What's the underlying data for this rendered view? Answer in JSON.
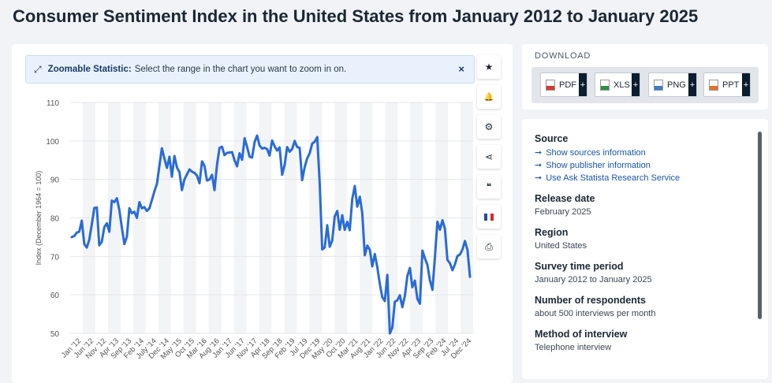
{
  "page": {
    "title": "Consumer Sentiment Index in the United States from January 2012 to January 2025"
  },
  "zoom": {
    "label": "Zoomable Statistic:",
    "text": "Select the range in the chart you want to zoom in on.",
    "close": "×"
  },
  "tools": [
    {
      "name": "star-icon",
      "glyph": "★"
    },
    {
      "name": "bell-icon",
      "glyph": "🔔"
    },
    {
      "name": "gear-icon",
      "glyph": "⚙"
    },
    {
      "name": "share-icon",
      "glyph": "⋖"
    },
    {
      "name": "quote-icon",
      "glyph": "❝"
    },
    {
      "name": "flag-icon",
      "glyph": ""
    },
    {
      "name": "print-icon",
      "glyph": "⎙"
    }
  ],
  "download": {
    "title": "DOWNLOAD",
    "buttons": [
      {
        "label": "PDF",
        "color": "#d43a2f"
      },
      {
        "label": "XLS",
        "color": "#2f8f46"
      },
      {
        "label": "PNG",
        "color": "#3b7fc4"
      },
      {
        "label": "PPT",
        "color": "#e0762a"
      }
    ],
    "plus": "+"
  },
  "info": {
    "source_head": "Source",
    "links": [
      "Show sources information",
      "Show publisher information",
      "Use Ask Statista Research Service"
    ],
    "release_head": "Release date",
    "release_val": "February 2025",
    "region_head": "Region",
    "region_val": "United States",
    "period_head": "Survey time period",
    "period_val": "January 2012 to January 2025",
    "resp_head": "Number of respondents",
    "resp_val": "about 500 interviews per month",
    "method_head": "Method of interview",
    "method_val": "Telephone interview"
  },
  "chart_data": {
    "type": "line",
    "ylabel": "Index (December 1964 = 100)",
    "ylim": [
      50,
      110
    ],
    "yticks": [
      50,
      60,
      70,
      80,
      90,
      100,
      110
    ],
    "line_color": "#2a6bd6",
    "xtick_labels": [
      "Jan '12",
      "Jun '12",
      "Nov '12",
      "Apr '13",
      "Sep '13",
      "Feb '14",
      "July '14",
      "Dec '14",
      "May '15",
      "Oct '15",
      "Mar '16",
      "Aug '16",
      "Jan '17",
      "Jun '17",
      "Nov '17",
      "Apr '18",
      "Sep '18",
      "Feb '19",
      "Jul '19",
      "Dec '19",
      "May '20",
      "Oct '20",
      "Mar '21",
      "Aug '21",
      "Jan '22",
      "Jun '22",
      "Nov '22",
      "Apr '23",
      "Sep '23",
      "Feb '24",
      "Jul '24",
      "Dec '24"
    ],
    "series": [
      {
        "values": [
          75.0,
          75.3,
          76.2,
          76.4,
          79.3,
          73.2,
          72.3,
          74.3,
          78.3,
          82.6,
          82.7,
          72.9,
          73.8,
          77.6,
          78.6,
          76.4,
          84.5,
          84.1,
          85.1,
          82.1,
          77.5,
          73.2,
          75.1,
          82.5,
          81.2,
          81.6,
          80.0,
          84.1,
          82.5,
          82.8,
          81.8,
          82.5,
          84.6,
          86.9,
          88.8,
          93.6,
          98.1,
          95.4,
          93.0,
          95.9,
          90.7,
          96.1,
          93.1,
          91.9,
          87.2,
          90.0,
          91.3,
          92.6,
          92.0,
          91.7,
          91.0,
          89.0,
          94.7,
          93.5,
          89.7,
          90.0,
          91.2,
          87.2,
          93.8,
          98.2,
          98.5,
          96.3,
          96.9,
          97.0,
          97.1,
          95.0,
          93.4,
          96.8,
          95.1,
          100.7,
          98.5,
          95.9,
          95.7,
          99.7,
          101.4,
          98.8,
          98.0,
          98.2,
          97.9,
          96.2,
          100.1,
          98.6,
          97.5,
          98.3,
          91.2,
          93.8,
          98.4,
          97.2,
          97.9,
          100.0,
          98.4,
          98.2,
          89.8,
          93.2,
          95.5,
          96.8,
          99.3,
          99.8,
          101.0,
          89.1,
          71.8,
          72.3,
          78.1,
          72.5,
          74.1,
          80.4,
          81.8,
          76.9,
          80.7,
          76.9,
          79.0,
          76.8,
          84.9,
          88.3,
          82.9,
          85.5,
          81.2,
          70.3,
          72.8,
          71.7,
          67.4,
          70.6,
          67.2,
          62.8,
          59.4,
          58.4,
          65.2,
          50.0,
          51.5,
          58.2,
          58.6,
          59.9,
          56.8,
          59.7,
          64.9,
          67.0,
          62.0,
          63.7,
          59.0,
          57.7,
          71.5,
          69.5,
          67.8,
          63.8,
          61.3,
          69.7,
          79.0,
          76.9,
          79.4,
          77.2,
          69.1,
          68.2,
          66.4,
          67.9,
          70.1,
          70.5,
          71.8,
          74.0,
          71.7,
          64.7
        ]
      }
    ]
  }
}
